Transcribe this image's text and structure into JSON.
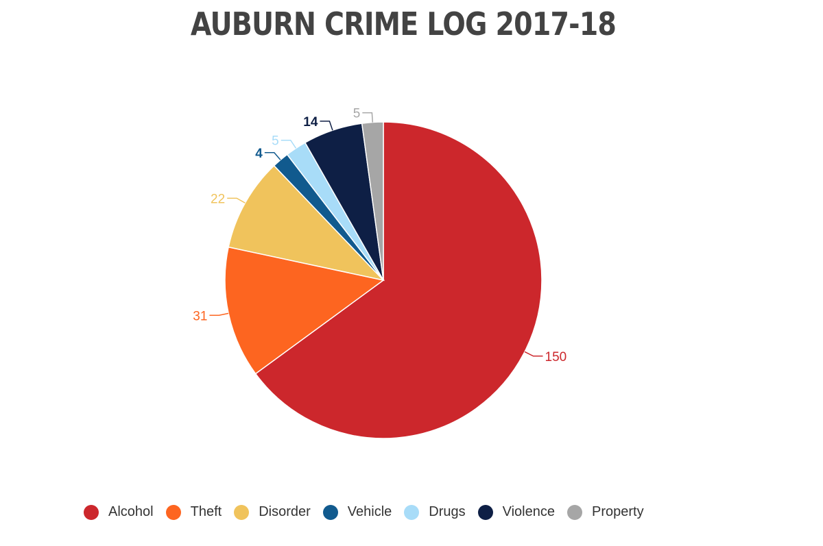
{
  "chart_data": {
    "type": "pie",
    "title": "AUBURN CRIME LOG 2017-18",
    "start_angle_deg": 0,
    "direction": "clockwise",
    "legend_position": "bottom",
    "slices": [
      {
        "label": "Alcohol",
        "value": 150,
        "color": "#cc272c"
      },
      {
        "label": "Theft",
        "value": 31,
        "color": "#fd6520"
      },
      {
        "label": "Disorder",
        "value": 22,
        "color": "#f0c35c"
      },
      {
        "label": "Vehicle",
        "value": 4,
        "color": "#115a8e"
      },
      {
        "label": "Drugs",
        "value": 5,
        "color": "#a8dcf8"
      },
      {
        "label": "Violence",
        "value": 14,
        "color": "#0e1f45"
      },
      {
        "label": "Property",
        "value": 5,
        "color": "#a6a6a6"
      }
    ]
  }
}
